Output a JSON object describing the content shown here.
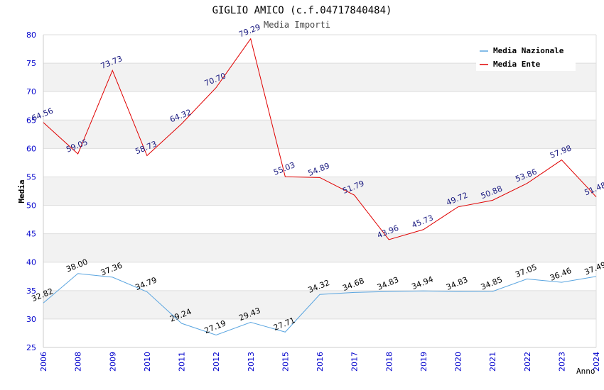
{
  "chart_data": {
    "type": "line",
    "title": "GIGLIO AMICO (c.f.04717840484)",
    "subtitle": "Media Importi",
    "xlabel": "Anno",
    "ylabel": "Media",
    "categories": [
      "2006",
      "2008",
      "2009",
      "2010",
      "2011",
      "2012",
      "2013",
      "2015",
      "2016",
      "2017",
      "2018",
      "2019",
      "2020",
      "2021",
      "2022",
      "2023",
      "2024"
    ],
    "ylim": [
      25,
      80
    ],
    "yticks": [
      25,
      30,
      35,
      40,
      45,
      50,
      55,
      60,
      65,
      70,
      75,
      80
    ],
    "grid": "horizontal alternating bands",
    "legend_position": "top-right",
    "series": [
      {
        "name": "Media Nazionale",
        "color": "#5aa5e0",
        "label_color": "#000000",
        "values": [
          32.82,
          38.0,
          37.36,
          34.79,
          29.24,
          27.19,
          29.43,
          27.71,
          34.32,
          34.68,
          34.83,
          34.94,
          34.83,
          34.85,
          37.05,
          36.46,
          37.49
        ],
        "labels": [
          "32.82",
          "38.00",
          "37.36",
          "34.79",
          "29.24",
          "27.19",
          "29.43",
          "27.71",
          "34.32",
          "34.68",
          "34.83",
          "34.94",
          "34.83",
          "34.85",
          "37.05",
          "36.46",
          "37.49"
        ]
      },
      {
        "name": "Media Ente",
        "color": "#e00000",
        "label_color": "#1a1a80",
        "values": [
          64.56,
          59.05,
          73.73,
          58.73,
          64.32,
          70.7,
          79.29,
          55.03,
          54.89,
          51.79,
          43.96,
          45.73,
          49.72,
          50.88,
          53.86,
          57.98,
          51.48
        ],
        "labels": [
          "64.56",
          "59.05",
          "73.73",
          "58.73",
          "64.32",
          "70.70",
          "79.29",
          "55.03",
          "54.89",
          "51.79",
          "43.96",
          "45.73",
          "49.72",
          "50.88",
          "53.86",
          "57.98",
          "51.48"
        ]
      }
    ]
  },
  "colors": {
    "axis_tick_text": "#0000cc",
    "band": "#f2f2f2",
    "gridline": "#dddddd",
    "title_text": "#000000",
    "subtitle_text": "#444444"
  }
}
